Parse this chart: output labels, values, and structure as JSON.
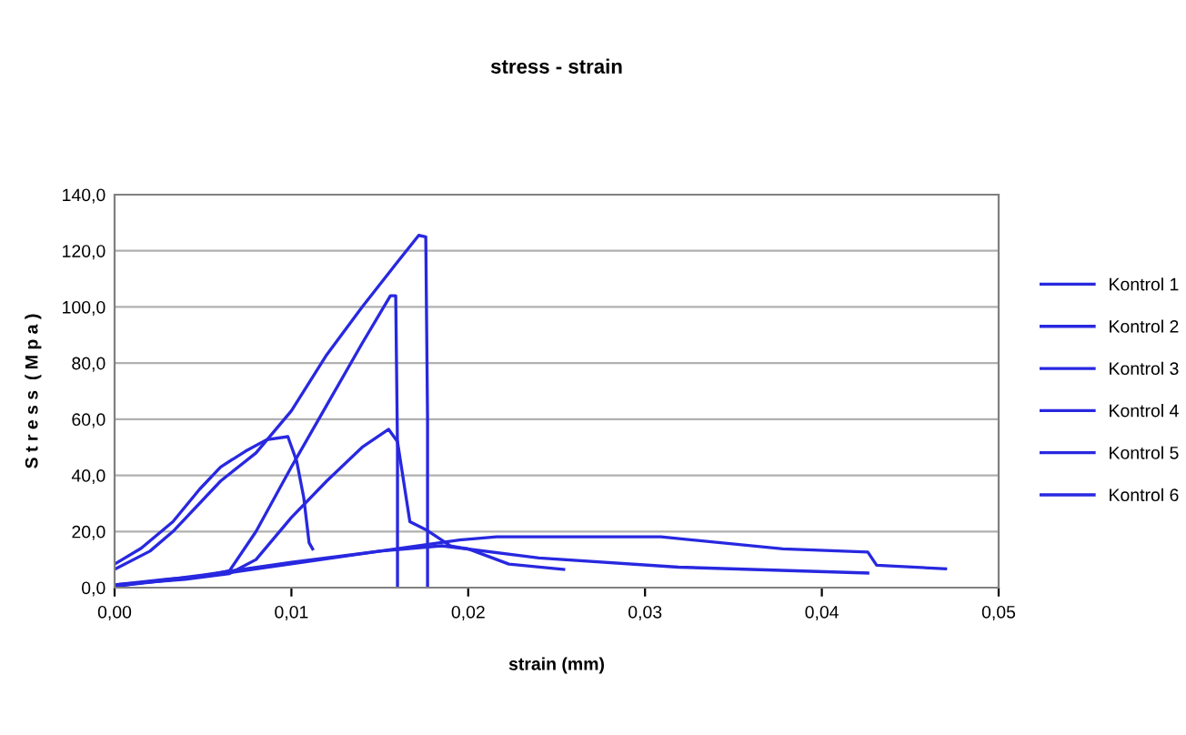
{
  "chart_data": {
    "type": "line",
    "title": "stress - strain",
    "xlabel": "strain (mm)",
    "ylabel": "S t r e s s  ( M p a )",
    "xlim": [
      0,
      0.05
    ],
    "xticks": [
      {
        "value": 0,
        "label": "0,00"
      },
      {
        "value": 0.01,
        "label": "0,01"
      },
      {
        "value": 0.02,
        "label": "0,02"
      },
      {
        "value": 0.03,
        "label": "0,03"
      },
      {
        "value": 0.04,
        "label": "0,04"
      },
      {
        "value": 0.05,
        "label": "0,05"
      }
    ],
    "ylim": [
      0,
      140
    ],
    "yticks": [
      {
        "value": 0,
        "label": "0,0"
      },
      {
        "value": 20,
        "label": "20,0"
      },
      {
        "value": 40,
        "label": "40,0"
      },
      {
        "value": 60,
        "label": "60,0"
      },
      {
        "value": 80,
        "label": "80,0"
      },
      {
        "value": 100,
        "label": "100,0"
      },
      {
        "value": 120,
        "label": "120,0"
      },
      {
        "value": 140,
        "label": "140,0"
      }
    ],
    "grid": "y",
    "legend": "right",
    "marker": "none",
    "line_style": "solid",
    "series": [
      {
        "name": "Kontrol 1",
        "color": "#2828e0",
        "x": [
          0,
          0.002,
          0.0033,
          0.006,
          0.008,
          0.01,
          0.012,
          0.014,
          0.016,
          0.0172,
          0.0176,
          0.0177,
          0.0177
        ],
        "values": [
          6.5,
          13,
          20,
          38,
          48,
          63,
          83,
          100,
          116,
          125.5,
          125,
          60,
          0
        ]
      },
      {
        "name": "Kontrol 2",
        "color": "#2828e0",
        "x": [
          0,
          0.003,
          0.005,
          0.0065,
          0.008,
          0.01,
          0.012,
          0.014,
          0.0156,
          0.0159,
          0.016,
          0.016
        ],
        "values": [
          1,
          3,
          4,
          6,
          20,
          43,
          65,
          87,
          104,
          104,
          50,
          0
        ]
      },
      {
        "name": "Kontrol 3",
        "color": "#2828e0",
        "x": [
          0,
          0.004,
          0.0065,
          0.008,
          0.01,
          0.012,
          0.014,
          0.0155,
          0.016,
          0.0167,
          0.0177,
          0.019,
          0.02,
          0.0223,
          0.0254
        ],
        "values": [
          1,
          3,
          5,
          10,
          25,
          38,
          50,
          56.4,
          52,
          23.5,
          20.3,
          14.9,
          13.8,
          8.4,
          6.5
        ]
      },
      {
        "name": "Kontrol 4",
        "color": "#2828e0",
        "x": [
          0,
          0.0015,
          0.0033,
          0.0048,
          0.006,
          0.0074,
          0.0086,
          0.0098,
          0.0103,
          0.0107,
          0.011,
          0.0112
        ],
        "values": [
          8.4,
          14,
          23.5,
          35,
          43,
          48.6,
          52.7,
          53.8,
          45,
          32,
          16,
          13.8
        ]
      },
      {
        "name": "Kontrol 5",
        "color": "#2828e0",
        "x": [
          0,
          0.005,
          0.01,
          0.015,
          0.0195,
          0.0216,
          0.0309,
          0.0378,
          0.0426,
          0.0431,
          0.047
        ],
        "values": [
          0.5,
          4,
          8.5,
          13,
          17,
          18.1,
          18.1,
          13.8,
          12.7,
          8,
          6.7
        ]
      },
      {
        "name": "Kontrol 6",
        "color": "#2828e0",
        "x": [
          0,
          0.005,
          0.01,
          0.015,
          0.0185,
          0.024,
          0.0319,
          0.0426
        ],
        "values": [
          0.5,
          4.5,
          9,
          13,
          14.9,
          10.6,
          7.3,
          5.2
        ]
      }
    ]
  }
}
